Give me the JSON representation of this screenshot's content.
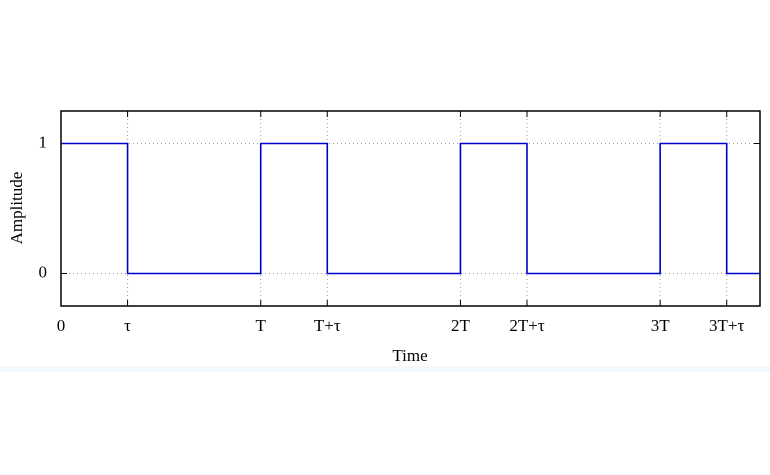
{
  "chart_data": {
    "type": "line",
    "x_label": "Time",
    "y_label": "Amplitude",
    "x": [
      0,
      1,
      1,
      3,
      3,
      4,
      4,
      6,
      6,
      7,
      7,
      9,
      9,
      10,
      10,
      10.5
    ],
    "series": [
      {
        "color": "#0000cc",
        "values": [
          1,
          1,
          0,
          0,
          1,
          1,
          0,
          0,
          1,
          1,
          0,
          0,
          1,
          1,
          0,
          0
        ]
      }
    ],
    "xlim": [
      0,
      10.5
    ],
    "ylim": [
      -0.25,
      1.25
    ],
    "xticks": [
      0,
      {
        "value": 1,
        "label": "τ"
      },
      {
        "value": 3,
        "label": "T"
      },
      {
        "value": 4,
        "label": "T+τ"
      },
      {
        "value": 6,
        "label": "2T"
      },
      {
        "value": 7,
        "label": "2T+τ"
      },
      {
        "value": 9,
        "label": "3T"
      },
      {
        "value": 10,
        "label": "3T+τ"
      }
    ],
    "yticks": [
      0,
      1
    ],
    "grid": true
  }
}
